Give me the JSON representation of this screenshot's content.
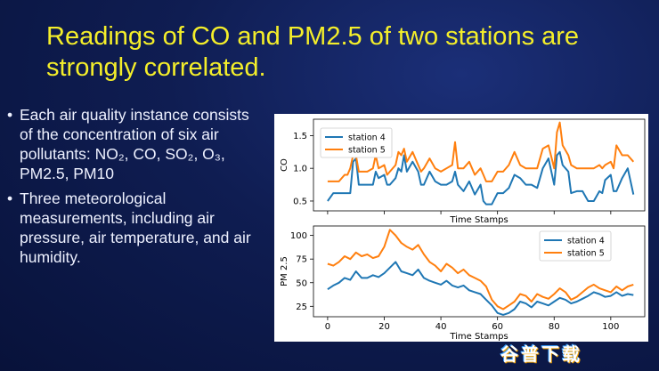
{
  "slide": {
    "title": "Readings of CO and PM2.5 of two stations are strongly correlated.",
    "bullets": [
      {
        "text": "Each air quality instance consists of the concentration of six air pollutants: NO₂, CO, SO₂, O₃, PM2.5, PM10"
      },
      {
        "text": "Three meteorological measurements, including air pressure, air temperature, and air humidity."
      }
    ],
    "bullet_symbol": "•",
    "watermark": "谷普下载"
  },
  "colors": {
    "title": "#f4ee2a",
    "station4": "#1f77b4",
    "station5": "#ff7f0e",
    "text": "#eef1ff"
  },
  "chart_data": [
    {
      "type": "line",
      "xlabel": "Time Stamps",
      "ylabel": "CO",
      "xlim": [
        -5,
        112
      ],
      "ylim": [
        0.35,
        1.75
      ],
      "yticks": [
        "0.5",
        "1.0",
        "1.5"
      ],
      "ytick_values": [
        0.5,
        1.0,
        1.5
      ],
      "show_xticklabels": false,
      "legend_position": "upper-left",
      "series": [
        {
          "name": "station 4",
          "color": "#1f77b4",
          "x": [
            0,
            2,
            3,
            4,
            6,
            7,
            8,
            9,
            10,
            11,
            12,
            14,
            16,
            17,
            18,
            20,
            21,
            22,
            24,
            25,
            26,
            27,
            28,
            30,
            32,
            33,
            34,
            36,
            38,
            40,
            42,
            44,
            45,
            46,
            48,
            50,
            52,
            54,
            55,
            56,
            58,
            60,
            62,
            64,
            66,
            68,
            70,
            72,
            74,
            76,
            78,
            80,
            81,
            82,
            83,
            85,
            86,
            88,
            90,
            92,
            94,
            96,
            97,
            98,
            100,
            101,
            102,
            104,
            106,
            108
          ],
          "y": [
            0.5,
            0.62,
            0.62,
            0.62,
            0.62,
            0.62,
            0.62,
            1.1,
            1.15,
            0.75,
            0.75,
            0.75,
            0.75,
            0.95,
            0.85,
            0.9,
            0.75,
            0.75,
            0.85,
            1.0,
            0.95,
            1.2,
            0.95,
            1.1,
            0.95,
            0.75,
            0.75,
            0.95,
            0.8,
            0.75,
            0.75,
            0.8,
            0.95,
            0.75,
            0.65,
            0.8,
            0.6,
            0.75,
            0.5,
            0.45,
            0.45,
            0.62,
            0.62,
            0.7,
            0.9,
            0.85,
            0.75,
            0.75,
            0.7,
            1.0,
            1.15,
            0.75,
            1.2,
            1.25,
            1.05,
            0.95,
            0.62,
            0.65,
            0.65,
            0.5,
            0.5,
            0.65,
            0.62,
            0.82,
            0.9,
            0.65,
            0.65,
            0.85,
            1.0,
            0.6
          ]
        },
        {
          "name": "station 5",
          "color": "#ff7f0e",
          "x": [
            0,
            2,
            4,
            6,
            7,
            8,
            9,
            10,
            11,
            12,
            14,
            16,
            17,
            18,
            20,
            21,
            22,
            24,
            25,
            26,
            27,
            28,
            30,
            32,
            33,
            34,
            36,
            38,
            40,
            42,
            44,
            45,
            46,
            48,
            50,
            52,
            54,
            55,
            56,
            58,
            60,
            62,
            64,
            66,
            68,
            70,
            72,
            74,
            76,
            78,
            80,
            81,
            82,
            83,
            85,
            86,
            88,
            90,
            92,
            94,
            96,
            97,
            98,
            100,
            101,
            102,
            104,
            106,
            108
          ],
          "y": [
            0.8,
            0.8,
            0.8,
            0.9,
            0.9,
            1.0,
            1.2,
            1.2,
            0.95,
            0.95,
            0.95,
            1.0,
            1.2,
            1.0,
            1.05,
            0.9,
            0.95,
            1.05,
            1.25,
            1.2,
            1.3,
            1.1,
            1.25,
            1.05,
            0.95,
            1.0,
            1.15,
            1.0,
            0.95,
            1.0,
            1.05,
            1.4,
            1.0,
            1.0,
            1.1,
            0.9,
            1.0,
            0.9,
            0.8,
            0.8,
            0.95,
            0.95,
            1.05,
            1.25,
            1.05,
            1.0,
            1.0,
            1.0,
            1.3,
            1.35,
            1.0,
            1.55,
            1.7,
            1.35,
            1.2,
            1.05,
            1.0,
            1.0,
            1.0,
            1.0,
            1.05,
            1.0,
            1.05,
            1.1,
            1.0,
            1.35,
            1.2,
            1.2,
            1.1
          ]
        }
      ]
    },
    {
      "type": "line",
      "xlabel": "Time Stamps",
      "ylabel": "PM 2.5",
      "xlim": [
        -5,
        112
      ],
      "ylim": [
        14,
        110
      ],
      "yticks": [
        "25",
        "50",
        "75",
        "100"
      ],
      "ytick_values": [
        25,
        50,
        75,
        100
      ],
      "xticks": [
        "0",
        "20",
        "40",
        "60",
        "80",
        "100"
      ],
      "xtick_values": [
        0,
        20,
        40,
        60,
        80,
        100
      ],
      "legend_position": "upper-right",
      "series": [
        {
          "name": "station 4",
          "color": "#1f77b4",
          "x": [
            0,
            2,
            4,
            6,
            8,
            10,
            12,
            14,
            16,
            18,
            20,
            22,
            24,
            26,
            28,
            30,
            32,
            34,
            36,
            38,
            40,
            42,
            44,
            46,
            48,
            50,
            52,
            54,
            56,
            58,
            60,
            62,
            64,
            66,
            68,
            70,
            72,
            74,
            76,
            78,
            80,
            82,
            84,
            86,
            88,
            90,
            92,
            94,
            96,
            98,
            100,
            102,
            104,
            106,
            108
          ],
          "y": [
            43,
            47,
            50,
            55,
            53,
            62,
            55,
            55,
            58,
            56,
            60,
            66,
            72,
            62,
            60,
            58,
            64,
            55,
            52,
            50,
            48,
            52,
            47,
            45,
            47,
            42,
            40,
            38,
            32,
            26,
            18,
            16,
            18,
            22,
            30,
            28,
            24,
            30,
            28,
            26,
            30,
            34,
            32,
            28,
            30,
            33,
            36,
            40,
            38,
            35,
            36,
            40,
            36,
            38,
            37
          ]
        },
        {
          "name": "station 5",
          "color": "#ff7f0e",
          "x": [
            0,
            2,
            4,
            6,
            8,
            10,
            12,
            14,
            16,
            18,
            20,
            22,
            24,
            26,
            28,
            30,
            32,
            34,
            36,
            38,
            40,
            42,
            44,
            46,
            48,
            50,
            52,
            54,
            56,
            58,
            60,
            62,
            64,
            66,
            68,
            70,
            72,
            74,
            76,
            78,
            80,
            82,
            84,
            86,
            88,
            90,
            92,
            94,
            96,
            98,
            100,
            102,
            104,
            106,
            108
          ],
          "y": [
            70,
            68,
            72,
            78,
            75,
            82,
            78,
            80,
            76,
            78,
            88,
            106,
            100,
            92,
            88,
            85,
            90,
            80,
            72,
            68,
            62,
            70,
            66,
            60,
            64,
            58,
            55,
            52,
            46,
            32,
            25,
            22,
            26,
            30,
            38,
            36,
            30,
            38,
            35,
            33,
            38,
            44,
            40,
            32,
            35,
            40,
            45,
            48,
            44,
            42,
            40,
            46,
            42,
            46,
            48
          ]
        }
      ]
    }
  ]
}
